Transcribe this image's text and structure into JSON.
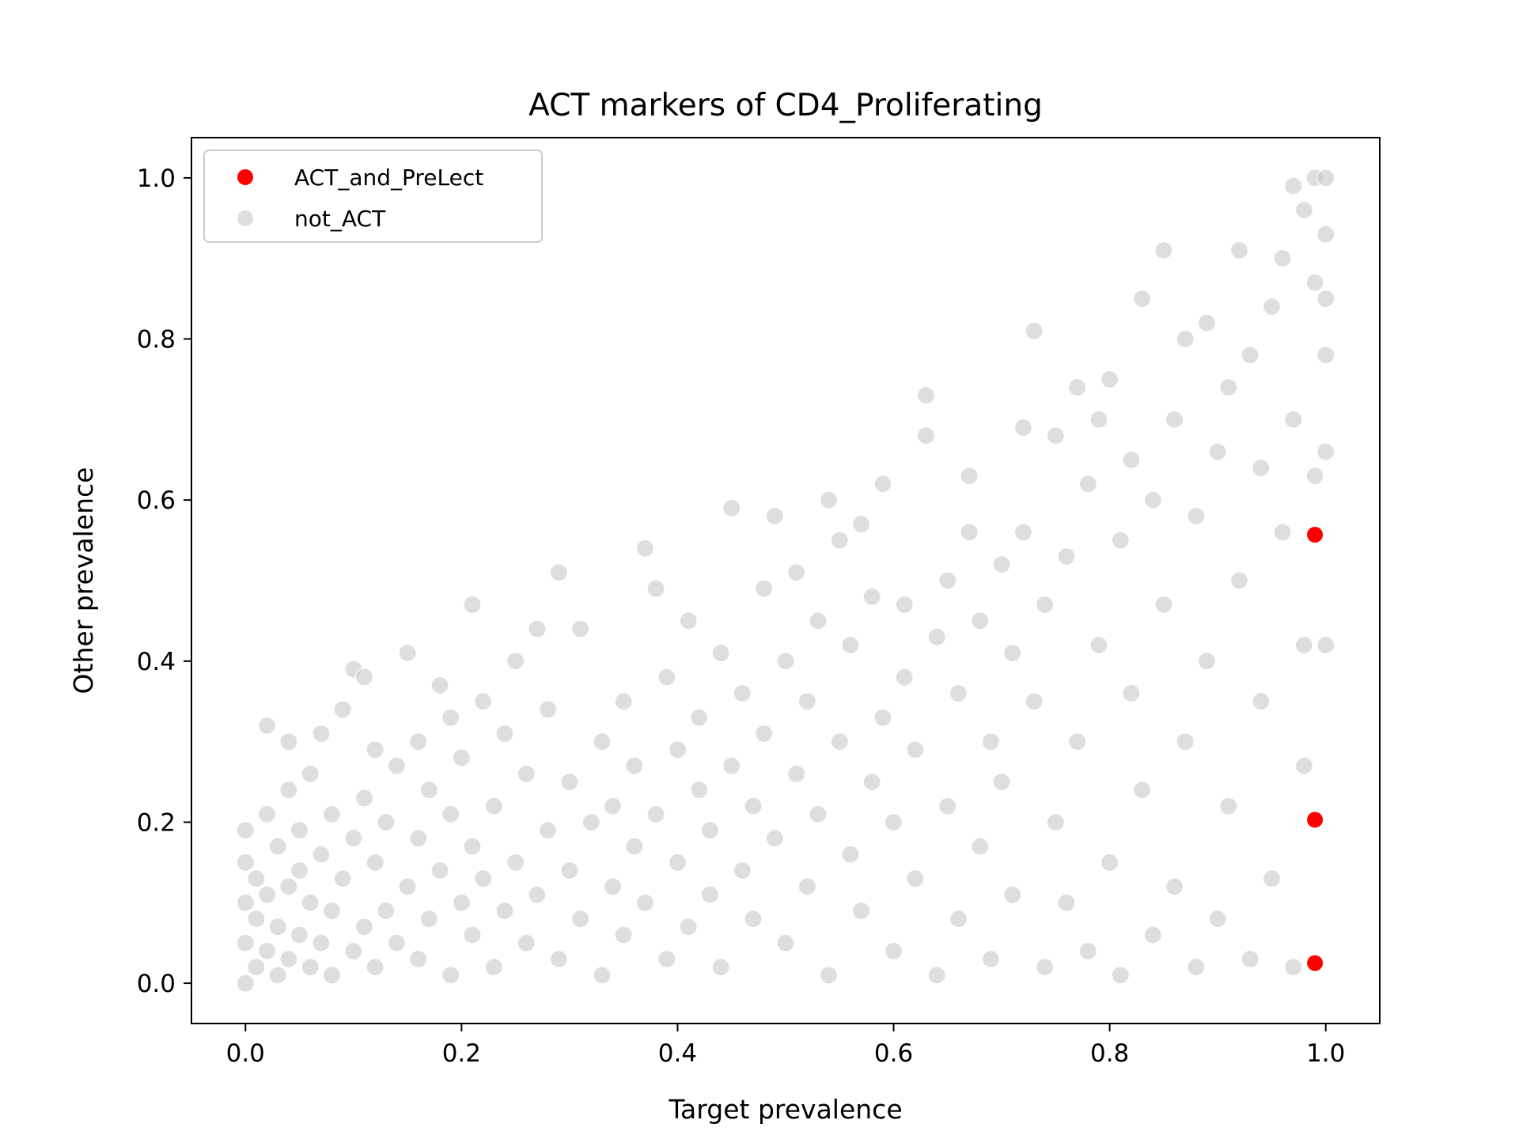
{
  "chart_data": {
    "type": "scatter",
    "title": "ACT markers of CD4_Proliferating",
    "xlabel": "Target prevalence",
    "ylabel": "Other prevalence",
    "xlim": [
      -0.05,
      1.05
    ],
    "ylim": [
      -0.05,
      1.05
    ],
    "xticks": [
      0.0,
      0.2,
      0.4,
      0.6,
      0.8,
      1.0
    ],
    "yticks": [
      0.0,
      0.2,
      0.4,
      0.6,
      0.8,
      1.0
    ],
    "xtick_labels": [
      "0.0",
      "0.2",
      "0.4",
      "0.6",
      "0.8",
      "1.0"
    ],
    "ytick_labels": [
      "0.0",
      "0.2",
      "0.4",
      "0.6",
      "0.8",
      "1.0"
    ],
    "grid": false,
    "legend_position": "top-left",
    "series": [
      {
        "name": "not_ACT",
        "color": "#c8c8c8",
        "points": [
          [
            0.0,
            0.0
          ],
          [
            0.0,
            0.05
          ],
          [
            0.0,
            0.1
          ],
          [
            0.0,
            0.15
          ],
          [
            0.0,
            0.19
          ],
          [
            0.01,
            0.02
          ],
          [
            0.01,
            0.08
          ],
          [
            0.01,
            0.13
          ],
          [
            0.02,
            0.04
          ],
          [
            0.02,
            0.11
          ],
          [
            0.02,
            0.21
          ],
          [
            0.02,
            0.32
          ],
          [
            0.03,
            0.01
          ],
          [
            0.03,
            0.07
          ],
          [
            0.03,
            0.17
          ],
          [
            0.04,
            0.03
          ],
          [
            0.04,
            0.12
          ],
          [
            0.04,
            0.24
          ],
          [
            0.04,
            0.3
          ],
          [
            0.05,
            0.06
          ],
          [
            0.05,
            0.14
          ],
          [
            0.05,
            0.19
          ],
          [
            0.06,
            0.02
          ],
          [
            0.06,
            0.1
          ],
          [
            0.06,
            0.26
          ],
          [
            0.07,
            0.05
          ],
          [
            0.07,
            0.16
          ],
          [
            0.07,
            0.31
          ],
          [
            0.08,
            0.01
          ],
          [
            0.08,
            0.09
          ],
          [
            0.08,
            0.21
          ],
          [
            0.09,
            0.13
          ],
          [
            0.09,
            0.34
          ],
          [
            0.1,
            0.04
          ],
          [
            0.1,
            0.18
          ],
          [
            0.1,
            0.39
          ],
          [
            0.11,
            0.07
          ],
          [
            0.11,
            0.23
          ],
          [
            0.11,
            0.38
          ],
          [
            0.12,
            0.02
          ],
          [
            0.12,
            0.15
          ],
          [
            0.12,
            0.29
          ],
          [
            0.13,
            0.09
          ],
          [
            0.13,
            0.2
          ],
          [
            0.14,
            0.05
          ],
          [
            0.14,
            0.27
          ],
          [
            0.15,
            0.12
          ],
          [
            0.15,
            0.41
          ],
          [
            0.16,
            0.03
          ],
          [
            0.16,
            0.18
          ],
          [
            0.16,
            0.3
          ],
          [
            0.17,
            0.08
          ],
          [
            0.17,
            0.24
          ],
          [
            0.18,
            0.14
          ],
          [
            0.18,
            0.37
          ],
          [
            0.19,
            0.01
          ],
          [
            0.19,
            0.21
          ],
          [
            0.19,
            0.33
          ],
          [
            0.2,
            0.1
          ],
          [
            0.2,
            0.28
          ],
          [
            0.21,
            0.06
          ],
          [
            0.21,
            0.17
          ],
          [
            0.21,
            0.47
          ],
          [
            0.22,
            0.13
          ],
          [
            0.22,
            0.35
          ],
          [
            0.23,
            0.02
          ],
          [
            0.23,
            0.22
          ],
          [
            0.24,
            0.09
          ],
          [
            0.24,
            0.31
          ],
          [
            0.25,
            0.15
          ],
          [
            0.25,
            0.4
          ],
          [
            0.26,
            0.05
          ],
          [
            0.26,
            0.26
          ],
          [
            0.27,
            0.11
          ],
          [
            0.27,
            0.44
          ],
          [
            0.28,
            0.19
          ],
          [
            0.28,
            0.34
          ],
          [
            0.29,
            0.03
          ],
          [
            0.29,
            0.51
          ],
          [
            0.3,
            0.14
          ],
          [
            0.3,
            0.25
          ],
          [
            0.31,
            0.08
          ],
          [
            0.31,
            0.44
          ],
          [
            0.32,
            0.2
          ],
          [
            0.33,
            0.01
          ],
          [
            0.33,
            0.3
          ],
          [
            0.34,
            0.12
          ],
          [
            0.34,
            0.22
          ],
          [
            0.35,
            0.06
          ],
          [
            0.35,
            0.35
          ],
          [
            0.36,
            0.17
          ],
          [
            0.36,
            0.27
          ],
          [
            0.37,
            0.54
          ],
          [
            0.37,
            0.1
          ],
          [
            0.38,
            0.49
          ],
          [
            0.38,
            0.21
          ],
          [
            0.39,
            0.03
          ],
          [
            0.39,
            0.38
          ],
          [
            0.4,
            0.15
          ],
          [
            0.4,
            0.29
          ],
          [
            0.41,
            0.07
          ],
          [
            0.41,
            0.45
          ],
          [
            0.42,
            0.24
          ],
          [
            0.42,
            0.33
          ],
          [
            0.43,
            0.11
          ],
          [
            0.43,
            0.19
          ],
          [
            0.44,
            0.02
          ],
          [
            0.44,
            0.41
          ],
          [
            0.45,
            0.27
          ],
          [
            0.45,
            0.59
          ],
          [
            0.46,
            0.14
          ],
          [
            0.46,
            0.36
          ],
          [
            0.47,
            0.08
          ],
          [
            0.47,
            0.22
          ],
          [
            0.48,
            0.49
          ],
          [
            0.48,
            0.31
          ],
          [
            0.49,
            0.18
          ],
          [
            0.49,
            0.58
          ],
          [
            0.5,
            0.05
          ],
          [
            0.5,
            0.4
          ],
          [
            0.51,
            0.26
          ],
          [
            0.51,
            0.51
          ],
          [
            0.52,
            0.12
          ],
          [
            0.52,
            0.35
          ],
          [
            0.53,
            0.21
          ],
          [
            0.53,
            0.45
          ],
          [
            0.54,
            0.01
          ],
          [
            0.54,
            0.6
          ],
          [
            0.55,
            0.3
          ],
          [
            0.55,
            0.55
          ],
          [
            0.56,
            0.16
          ],
          [
            0.56,
            0.42
          ],
          [
            0.57,
            0.09
          ],
          [
            0.57,
            0.57
          ],
          [
            0.58,
            0.25
          ],
          [
            0.58,
            0.48
          ],
          [
            0.59,
            0.33
          ],
          [
            0.59,
            0.62
          ],
          [
            0.6,
            0.04
          ],
          [
            0.6,
            0.2
          ],
          [
            0.61,
            0.38
          ],
          [
            0.61,
            0.47
          ],
          [
            0.62,
            0.13
          ],
          [
            0.62,
            0.29
          ],
          [
            0.63,
            0.73
          ],
          [
            0.63,
            0.68
          ],
          [
            0.64,
            0.01
          ],
          [
            0.64,
            0.43
          ],
          [
            0.65,
            0.22
          ],
          [
            0.65,
            0.5
          ],
          [
            0.66,
            0.08
          ],
          [
            0.66,
            0.36
          ],
          [
            0.67,
            0.56
          ],
          [
            0.67,
            0.63
          ],
          [
            0.68,
            0.17
          ],
          [
            0.68,
            0.45
          ],
          [
            0.69,
            0.03
          ],
          [
            0.69,
            0.3
          ],
          [
            0.7,
            0.52
          ],
          [
            0.7,
            0.25
          ],
          [
            0.71,
            0.11
          ],
          [
            0.71,
            0.41
          ],
          [
            0.72,
            0.69
          ],
          [
            0.72,
            0.56
          ],
          [
            0.73,
            0.81
          ],
          [
            0.73,
            0.35
          ],
          [
            0.74,
            0.02
          ],
          [
            0.74,
            0.47
          ],
          [
            0.75,
            0.2
          ],
          [
            0.75,
            0.68
          ],
          [
            0.76,
            0.1
          ],
          [
            0.76,
            0.53
          ],
          [
            0.77,
            0.3
          ],
          [
            0.77,
            0.74
          ],
          [
            0.78,
            0.04
          ],
          [
            0.78,
            0.62
          ],
          [
            0.79,
            0.42
          ],
          [
            0.79,
            0.7
          ],
          [
            0.8,
            0.15
          ],
          [
            0.8,
            0.75
          ],
          [
            0.81,
            0.01
          ],
          [
            0.81,
            0.55
          ],
          [
            0.82,
            0.36
          ],
          [
            0.82,
            0.65
          ],
          [
            0.83,
            0.85
          ],
          [
            0.83,
            0.24
          ],
          [
            0.84,
            0.06
          ],
          [
            0.84,
            0.6
          ],
          [
            0.85,
            0.91
          ],
          [
            0.85,
            0.47
          ],
          [
            0.86,
            0.12
          ],
          [
            0.86,
            0.7
          ],
          [
            0.87,
            0.8
          ],
          [
            0.87,
            0.3
          ],
          [
            0.88,
            0.02
          ],
          [
            0.88,
            0.58
          ],
          [
            0.89,
            0.82
          ],
          [
            0.89,
            0.4
          ],
          [
            0.9,
            0.08
          ],
          [
            0.9,
            0.66
          ],
          [
            0.91,
            0.74
          ],
          [
            0.91,
            0.22
          ],
          [
            0.92,
            0.91
          ],
          [
            0.92,
            0.5
          ],
          [
            0.93,
            0.03
          ],
          [
            0.93,
            0.78
          ],
          [
            0.94,
            0.64
          ],
          [
            0.94,
            0.35
          ],
          [
            0.95,
            0.84
          ],
          [
            0.95,
            0.13
          ],
          [
            0.96,
            0.9
          ],
          [
            0.96,
            0.56
          ],
          [
            0.97,
            0.99
          ],
          [
            0.97,
            0.02
          ],
          [
            0.97,
            0.7
          ],
          [
            0.98,
            0.96
          ],
          [
            0.98,
            0.42
          ],
          [
            0.98,
            0.27
          ],
          [
            0.99,
            1.0
          ],
          [
            0.99,
            0.87
          ],
          [
            0.99,
            0.63
          ],
          [
            1.0,
            1.0
          ],
          [
            1.0,
            0.93
          ],
          [
            1.0,
            0.85
          ],
          [
            1.0,
            0.78
          ],
          [
            1.0,
            0.66
          ],
          [
            1.0,
            0.42
          ]
        ]
      },
      {
        "name": "ACT_and_PreLect",
        "color": "#ff0000",
        "points": [
          [
            0.99,
            0.557
          ],
          [
            0.99,
            0.203
          ],
          [
            0.99,
            0.025
          ]
        ]
      }
    ]
  }
}
